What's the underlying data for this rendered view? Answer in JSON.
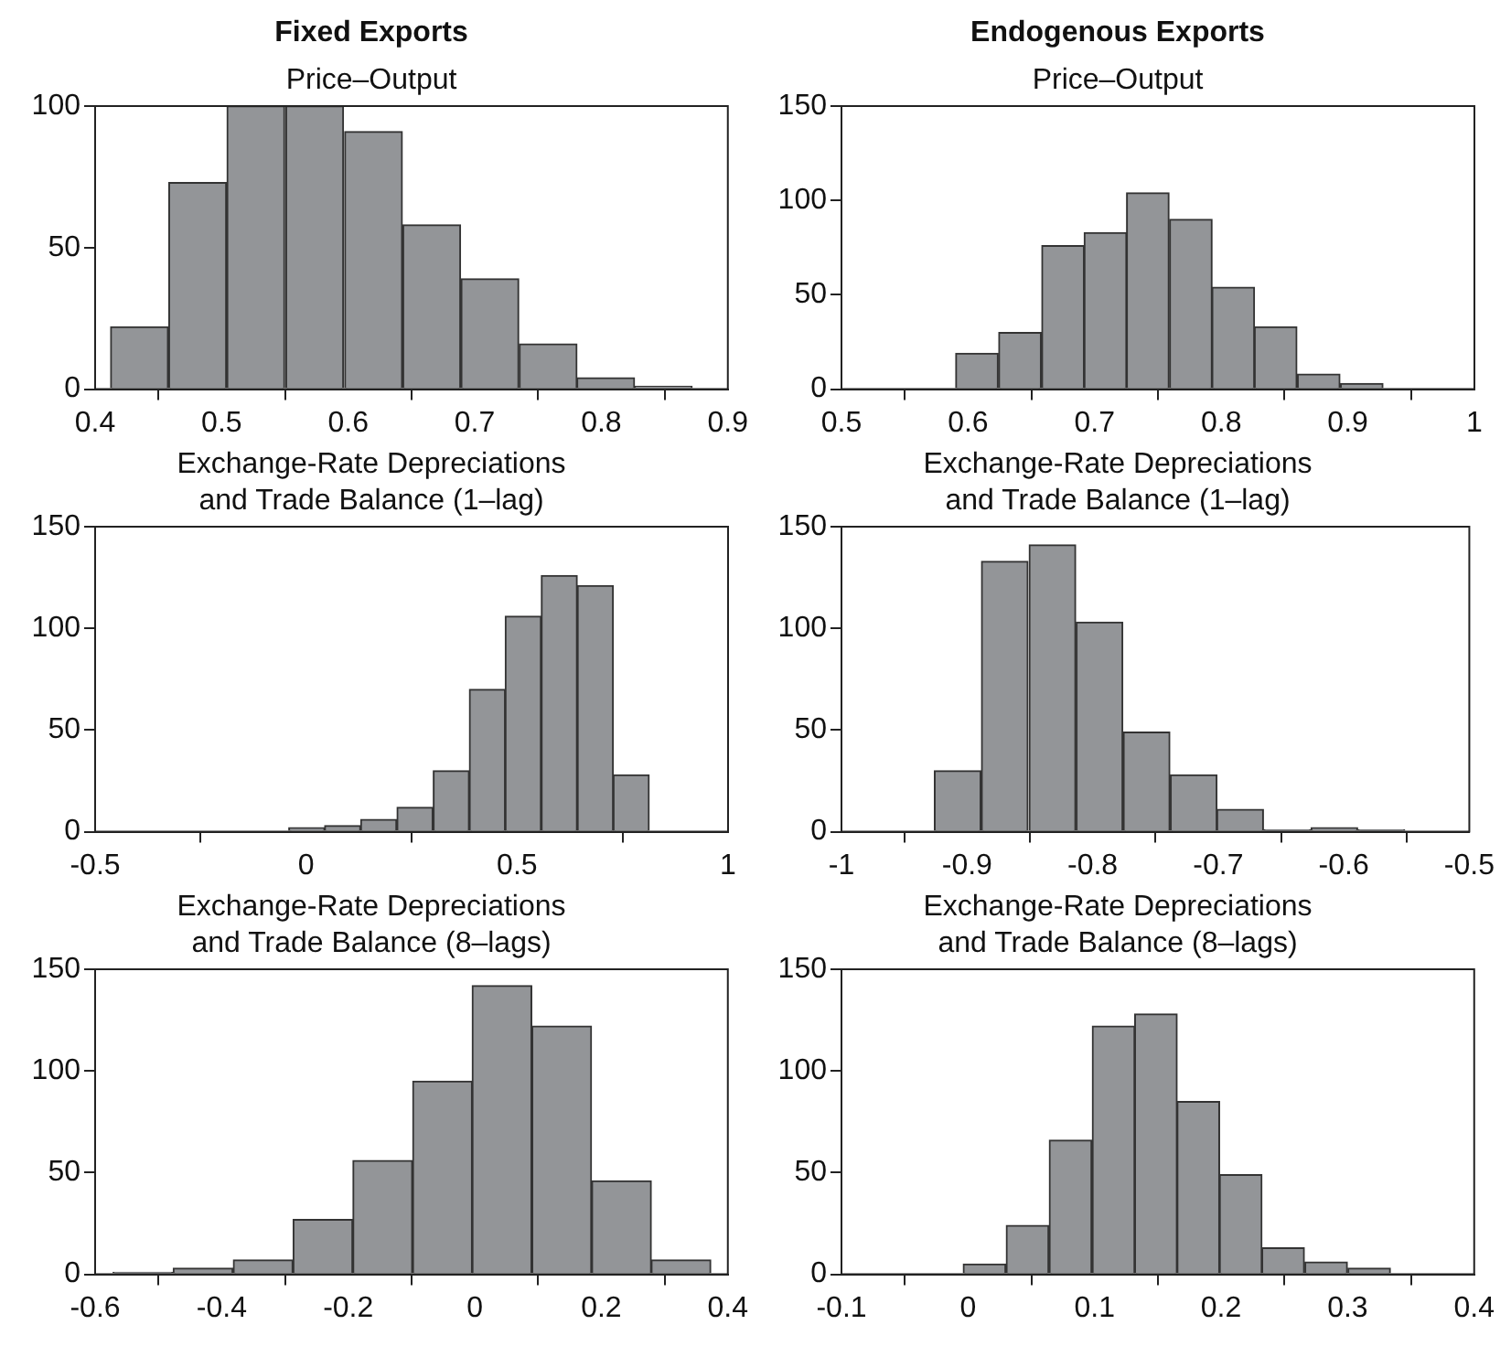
{
  "chart_data": [
    {
      "type": "histogram",
      "subtitle": "Fixed Exports",
      "title": "Price–Output",
      "color": "#939598",
      "grid": false,
      "bins": [
        0.412,
        0.458,
        0.504,
        0.55,
        0.597,
        0.643,
        0.689,
        0.735,
        0.781,
        0.826,
        0.872
      ],
      "values": [
        22,
        73,
        100,
        100,
        91,
        58,
        39,
        16,
        4,
        1
      ],
      "xlim": [
        0.4,
        0.9
      ],
      "xticks": [
        0.4,
        0.5,
        0.6,
        0.7,
        0.8,
        0.9
      ],
      "ylim": [
        0,
        100
      ],
      "yticks": [
        0,
        50,
        100
      ]
    },
    {
      "type": "histogram",
      "subtitle": "Endogenous Exports",
      "title": "Price–Output",
      "color": "#939598",
      "grid": false,
      "bins": [
        0.59,
        0.624,
        0.658,
        0.692,
        0.725,
        0.759,
        0.793,
        0.826,
        0.86,
        0.894,
        0.928
      ],
      "values": [
        19,
        30,
        76,
        83,
        104,
        90,
        54,
        33,
        8,
        3
      ],
      "xlim": [
        0.5,
        1
      ],
      "xticks": [
        0.5,
        0.6,
        0.7,
        0.8,
        0.9,
        1
      ],
      "ylim": [
        0,
        150
      ],
      "yticks": [
        0,
        50,
        100,
        150
      ]
    },
    {
      "type": "histogram",
      "title": "Exchange-Rate Depreciations\nand Trade Balance (1–lag)",
      "color": "#939598",
      "grid": false,
      "bins": [
        -0.041,
        0.044,
        0.129,
        0.215,
        0.301,
        0.387,
        0.472,
        0.557,
        0.643,
        0.728,
        0.813
      ],
      "values": [
        2,
        3,
        6,
        12,
        30,
        70,
        106,
        126,
        121,
        28
      ],
      "xlim": [
        -0.5,
        1
      ],
      "xticks": [
        -0.5,
        0,
        0.5,
        1
      ],
      "ylim": [
        0,
        150
      ],
      "yticks": [
        0,
        50,
        100,
        150
      ]
    },
    {
      "type": "histogram",
      "title": "Exchange-Rate Depreciations\nand Trade Balance (1–lag)",
      "color": "#939598",
      "grid": false,
      "bins": [
        -0.926,
        -0.889,
        -0.851,
        -0.813,
        -0.776,
        -0.738,
        -0.701,
        -0.664,
        -0.626,
        -0.589,
        -0.551
      ],
      "values": [
        30,
        133,
        141,
        103,
        49,
        28,
        11,
        1,
        2,
        1
      ],
      "xlim": [
        -1,
        -0.5
      ],
      "xticks": [
        -1,
        -0.9,
        -0.8,
        -0.7,
        -0.6,
        -0.5
      ],
      "ylim": [
        0,
        150
      ],
      "yticks": [
        0,
        50,
        100,
        150
      ]
    },
    {
      "type": "histogram",
      "title": "Exchange-Rate Depreciations\nand Trade Balance (8–lags)",
      "color": "#939598",
      "grid": false,
      "bins": [
        -0.572,
        -0.477,
        -0.382,
        -0.287,
        -0.193,
        -0.098,
        -0.004,
        0.09,
        0.185,
        0.279,
        0.373
      ],
      "values": [
        1,
        3,
        7,
        27,
        56,
        95,
        142,
        122,
        46,
        7
      ],
      "xlim": [
        -0.6,
        0.4
      ],
      "xticks": [
        -0.6,
        -0.4,
        -0.2,
        0,
        0.2,
        0.4
      ],
      "ylim": [
        0,
        150
      ],
      "yticks": [
        0,
        50,
        100,
        150
      ]
    },
    {
      "type": "histogram",
      "title": "Exchange-Rate Depreciations\nand Trade Balance (8–lags)",
      "color": "#939598",
      "grid": false,
      "bins": [
        -0.004,
        0.03,
        0.064,
        0.098,
        0.132,
        0.165,
        0.199,
        0.232,
        0.266,
        0.3,
        0.334
      ],
      "values": [
        5,
        24,
        66,
        122,
        128,
        85,
        49,
        13,
        6,
        3
      ],
      "xlim": [
        -0.1,
        0.4
      ],
      "xticks": [
        -0.1,
        0,
        0.1,
        0.2,
        0.3,
        0.4
      ],
      "ylim": [
        0,
        150
      ],
      "yticks": [
        0,
        50,
        100,
        150
      ]
    }
  ]
}
